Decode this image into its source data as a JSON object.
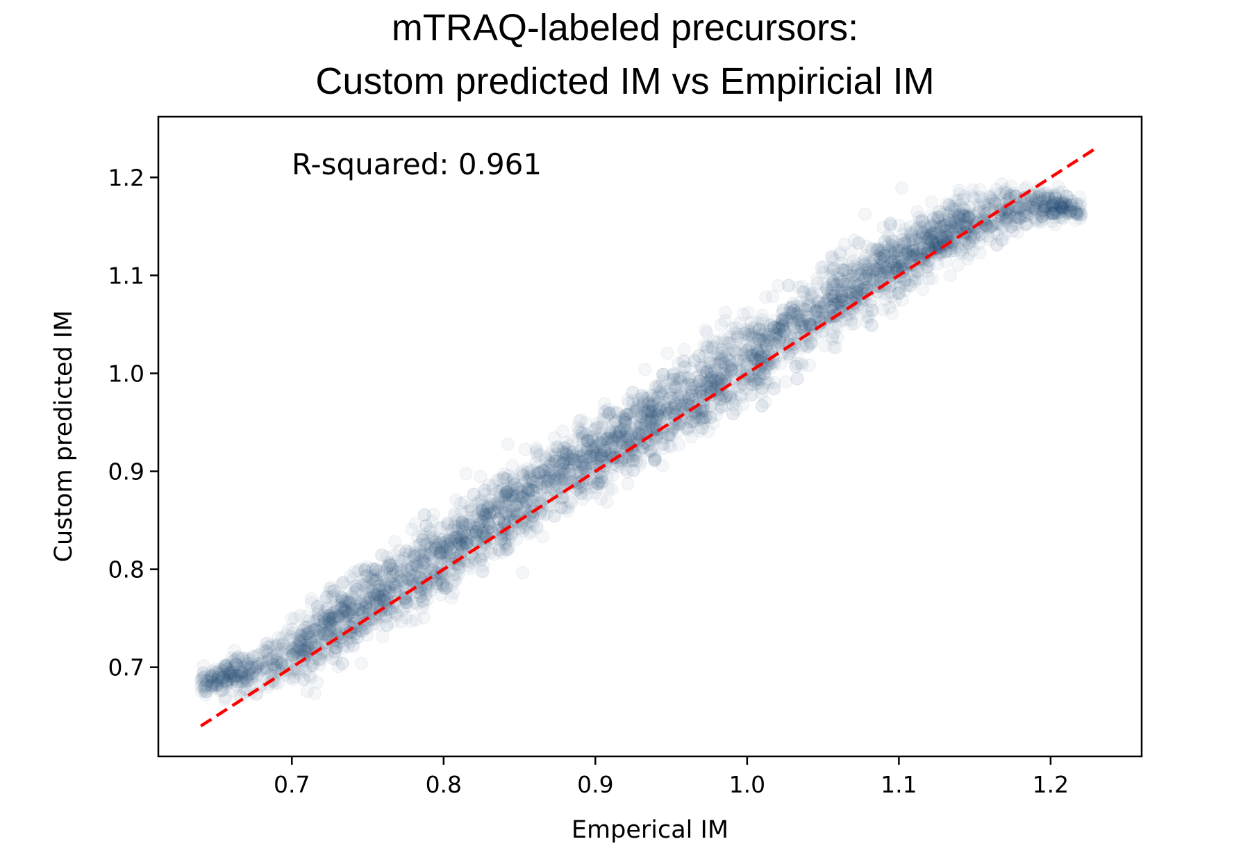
{
  "chart_data": {
    "type": "scatter",
    "title": [
      "mTRAQ-labeled precursors:",
      "Custom predicted IM vs Empiricial IM"
    ],
    "xlabel": "Emperical IM",
    "ylabel": "Custom predicted IM",
    "xlim": [
      0.612,
      1.26
    ],
    "ylim": [
      0.609,
      1.262
    ],
    "xticks": [
      0.7,
      0.8,
      0.9,
      1.0,
      1.1,
      1.2
    ],
    "xtick_labels": [
      "0.7",
      "0.8",
      "0.9",
      "1.0",
      "1.1",
      "1.2"
    ],
    "yticks": [
      0.7,
      0.8,
      0.9,
      1.0,
      1.1,
      1.2
    ],
    "ytick_labels": [
      "0.7",
      "0.8",
      "0.9",
      "1.0",
      "1.1",
      "1.2"
    ],
    "grid": false,
    "annotation": "R-squared: 0.961",
    "point_color": "#1f4e79",
    "point_alpha": 0.05,
    "series": [
      {
        "x": [
          0.64,
          0.66,
          0.68,
          0.7,
          0.72,
          0.74,
          0.76,
          0.78,
          0.8,
          0.82,
          0.84,
          0.86,
          0.88,
          0.9,
          0.92,
          0.94,
          0.96,
          0.98,
          1.0,
          1.02,
          1.04,
          1.06,
          1.08,
          1.1,
          1.12,
          1.14,
          1.16,
          1.18,
          1.2,
          1.22
        ],
        "y": [
          0.685,
          0.69,
          0.7,
          0.715,
          0.735,
          0.755,
          0.775,
          0.795,
          0.815,
          0.838,
          0.86,
          0.878,
          0.897,
          0.915,
          0.935,
          0.955,
          0.975,
          0.995,
          1.012,
          1.035,
          1.055,
          1.075,
          1.095,
          1.115,
          1.132,
          1.148,
          1.16,
          1.168,
          1.172,
          1.168
        ],
        "spread": [
          0.01,
          0.015,
          0.022,
          0.028,
          0.032,
          0.034,
          0.035,
          0.035,
          0.035,
          0.036,
          0.036,
          0.036,
          0.035,
          0.035,
          0.035,
          0.036,
          0.037,
          0.038,
          0.038,
          0.038,
          0.036,
          0.035,
          0.033,
          0.031,
          0.029,
          0.026,
          0.022,
          0.018,
          0.014,
          0.01
        ]
      }
    ],
    "identity_line": {
      "x": [
        0.64,
        1.23
      ],
      "y": [
        0.64,
        1.23
      ],
      "color": "#ff0000",
      "style": "dashed"
    }
  }
}
